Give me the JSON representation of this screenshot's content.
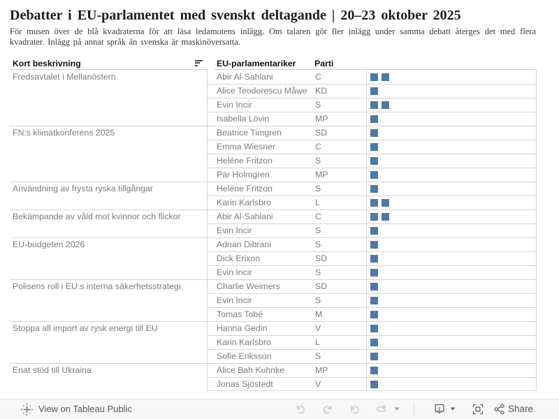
{
  "header": {
    "title": "Debatter i EU-parlamentet med svenskt deltagande | 20–23 oktober 2025",
    "subtitle": "För musen över de blå kvadraterna för att läsa ledamotens inlägg. Om talaren gör fler inlägg under samma debatt återges det med flera kvadrater. Inlägg på annat språk än svenska är maskinöversatta."
  },
  "table": {
    "columns": {
      "description": "Kort beskrivning",
      "mep": "EU-parlamentariker",
      "party": "Parti"
    },
    "mark_color": "#4e79a7",
    "groups": [
      {
        "label": "Fredsavtalet i Mellanöstern",
        "members": [
          {
            "name": "Abir Al-Sahlani",
            "party": "C",
            "count": 2
          },
          {
            "name": "Alice Teodorescu Måwe",
            "party": "KD",
            "count": 1
          },
          {
            "name": "Evin Incir",
            "party": "S",
            "count": 2
          },
          {
            "name": "Isabella Lövin",
            "party": "MP",
            "count": 1
          }
        ]
      },
      {
        "label": "FN:s klimatkonferens 2025",
        "members": [
          {
            "name": "Beatrice Timgren",
            "party": "SD",
            "count": 1
          },
          {
            "name": "Emma Wiesner",
            "party": "C",
            "count": 1
          },
          {
            "name": "Heléne Fritzon",
            "party": "S",
            "count": 1
          },
          {
            "name": "Pär Holmgren",
            "party": "MP",
            "count": 1
          }
        ]
      },
      {
        "label": "Användning av frysta ryska tillgångar",
        "members": [
          {
            "name": "Heléne Fritzon",
            "party": "S",
            "count": 1
          },
          {
            "name": "Karin Karlsbro",
            "party": "L",
            "count": 2
          }
        ]
      },
      {
        "label": "Bekämpande av våld mot kvinnor och flickor",
        "members": [
          {
            "name": "Abir Al-Sahlani",
            "party": "C",
            "count": 2
          },
          {
            "name": "Evin Incir",
            "party": "S",
            "count": 1
          }
        ]
      },
      {
        "label": "EU-budgeten 2026",
        "members": [
          {
            "name": "Adnan Dibrani",
            "party": "S",
            "count": 1
          },
          {
            "name": "Dick Erixon",
            "party": "SD",
            "count": 1
          },
          {
            "name": "Evin Incir",
            "party": "S",
            "count": 1
          }
        ]
      },
      {
        "label": "Polisens roll i EU:s interna säkerhetsstrategi",
        "members": [
          {
            "name": "Charlie Weimers",
            "party": "SD",
            "count": 1
          },
          {
            "name": "Evin Incir",
            "party": "S",
            "count": 1
          },
          {
            "name": "Tomas Tobé",
            "party": "M",
            "count": 1
          }
        ]
      },
      {
        "label": "Stoppa all import av rysk energi till EU",
        "members": [
          {
            "name": "Hanna Gedin",
            "party": "V",
            "count": 1
          },
          {
            "name": "Karin Karlsbro",
            "party": "L",
            "count": 1
          },
          {
            "name": "Sofie Eriksson",
            "party": "S",
            "count": 1
          }
        ]
      },
      {
        "label": "Enat stöd till Ukraina",
        "members": [
          {
            "name": "Alice Bah Kuhnke",
            "party": "MP",
            "count": 1
          },
          {
            "name": "Jonas Sjöstedt",
            "party": "V",
            "count": 1
          }
        ]
      }
    ]
  },
  "toolbar": {
    "view_on_label": "View on Tableau Public",
    "share_label": "Share",
    "icon_names": [
      "tableau-logo-icon",
      "undo-icon",
      "redo-icon",
      "reset-icon",
      "refresh-icon",
      "caret-down-icon",
      "download-icon",
      "caret-down-icon",
      "fullscreen-icon",
      "share-icon"
    ]
  }
}
